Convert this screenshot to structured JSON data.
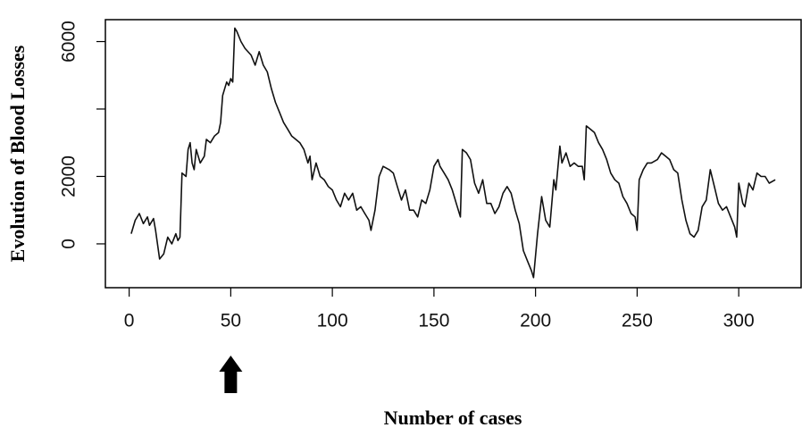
{
  "chart_data": {
    "type": "line",
    "xlabel": "Number of cases",
    "ylabel": "Evolution of  Blood Losses",
    "xlim": [
      -11.7,
      330.7
    ],
    "ylim": [
      -1300,
      6650
    ],
    "xticks": [
      0,
      50,
      100,
      150,
      200,
      250,
      300
    ],
    "yticks": [
      0,
      2000,
      {
        "value": 4000,
        "label": null
      },
      6000
    ],
    "arrow_at": 50,
    "color": "#111111",
    "x": [
      1,
      3,
      5,
      7,
      9,
      10,
      12,
      13,
      15,
      17,
      19,
      21,
      23,
      24,
      25,
      26,
      28,
      29,
      30,
      31,
      32,
      33,
      35,
      37,
      38,
      40,
      42,
      44,
      45,
      46,
      48,
      49,
      50,
      51,
      52,
      53,
      55,
      57,
      60,
      62,
      64,
      66,
      68,
      70,
      72,
      74,
      76,
      78,
      80,
      82,
      84,
      86,
      88,
      89,
      90,
      92,
      94,
      96,
      98,
      100,
      102,
      104,
      106,
      108,
      110,
      112,
      114,
      116,
      118,
      119,
      121,
      123,
      125,
      128,
      130,
      132,
      134,
      136,
      138,
      140,
      142,
      144,
      146,
      148,
      150,
      152,
      153,
      155,
      157,
      159,
      161,
      163,
      164,
      166,
      168,
      170,
      172,
      174,
      176,
      178,
      180,
      182,
      184,
      186,
      188,
      190,
      192,
      194,
      196,
      198,
      199,
      201,
      203,
      205,
      207,
      209,
      210,
      212,
      213,
      215,
      217,
      219,
      221,
      223,
      224,
      225,
      227,
      229,
      231,
      233,
      235,
      237,
      239,
      241,
      243,
      245,
      247,
      249,
      250,
      251,
      253,
      255,
      257,
      260,
      262,
      264,
      266,
      268,
      270,
      272,
      274,
      276,
      278,
      280,
      282,
      284,
      286,
      288,
      290,
      292,
      294,
      296,
      298,
      299,
      300,
      302,
      303,
      305,
      307,
      309,
      311,
      313,
      315,
      318
    ],
    "values": [
      300,
      700,
      900,
      600,
      800,
      550,
      750,
      400,
      -450,
      -300,
      200,
      0,
      300,
      100,
      200,
      2100,
      2000,
      2800,
      3000,
      2400,
      2200,
      2800,
      2400,
      2600,
      3100,
      3000,
      3200,
      3300,
      3600,
      4400,
      4800,
      4700,
      4900,
      4800,
      6400,
      6300,
      6000,
      5800,
      5600,
      5300,
      5700,
      5300,
      5100,
      4600,
      4200,
      3900,
      3600,
      3400,
      3200,
      3100,
      3000,
      2800,
      2400,
      2600,
      1900,
      2400,
      2000,
      1900,
      1700,
      1600,
      1300,
      1100,
      1500,
      1300,
      1500,
      1000,
      1100,
      900,
      700,
      400,
      1000,
      2000,
      2300,
      2200,
      2100,
      1700,
      1300,
      1600,
      1000,
      1000,
      800,
      1300,
      1200,
      1600,
      2300,
      2500,
      2300,
      2100,
      1900,
      1600,
      1200,
      800,
      2800,
      2700,
      2500,
      1800,
      1500,
      1900,
      1200,
      1200,
      900,
      1100,
      1500,
      1700,
      1500,
      1000,
      600,
      -200,
      -500,
      -800,
      -1000,
      300,
      1400,
      700,
      500,
      1900,
      1600,
      2900,
      2400,
      2700,
      2300,
      2400,
      2300,
      2300,
      1900,
      3500,
      3400,
      3300,
      3000,
      2800,
      2500,
      2100,
      1900,
      1800,
      1400,
      1200,
      900,
      800,
      400,
      1900,
      2200,
      2400,
      2400,
      2500,
      2700,
      2600,
      2500,
      2200,
      2100,
      1300,
      700,
      300,
      200,
      400,
      1100,
      1300,
      2200,
      1700,
      1200,
      1000,
      1100,
      800,
      500,
      200,
      1800,
      1200,
      1100,
      1800,
      1600,
      2100,
      2000,
      2000,
      1800,
      1900
    ]
  }
}
